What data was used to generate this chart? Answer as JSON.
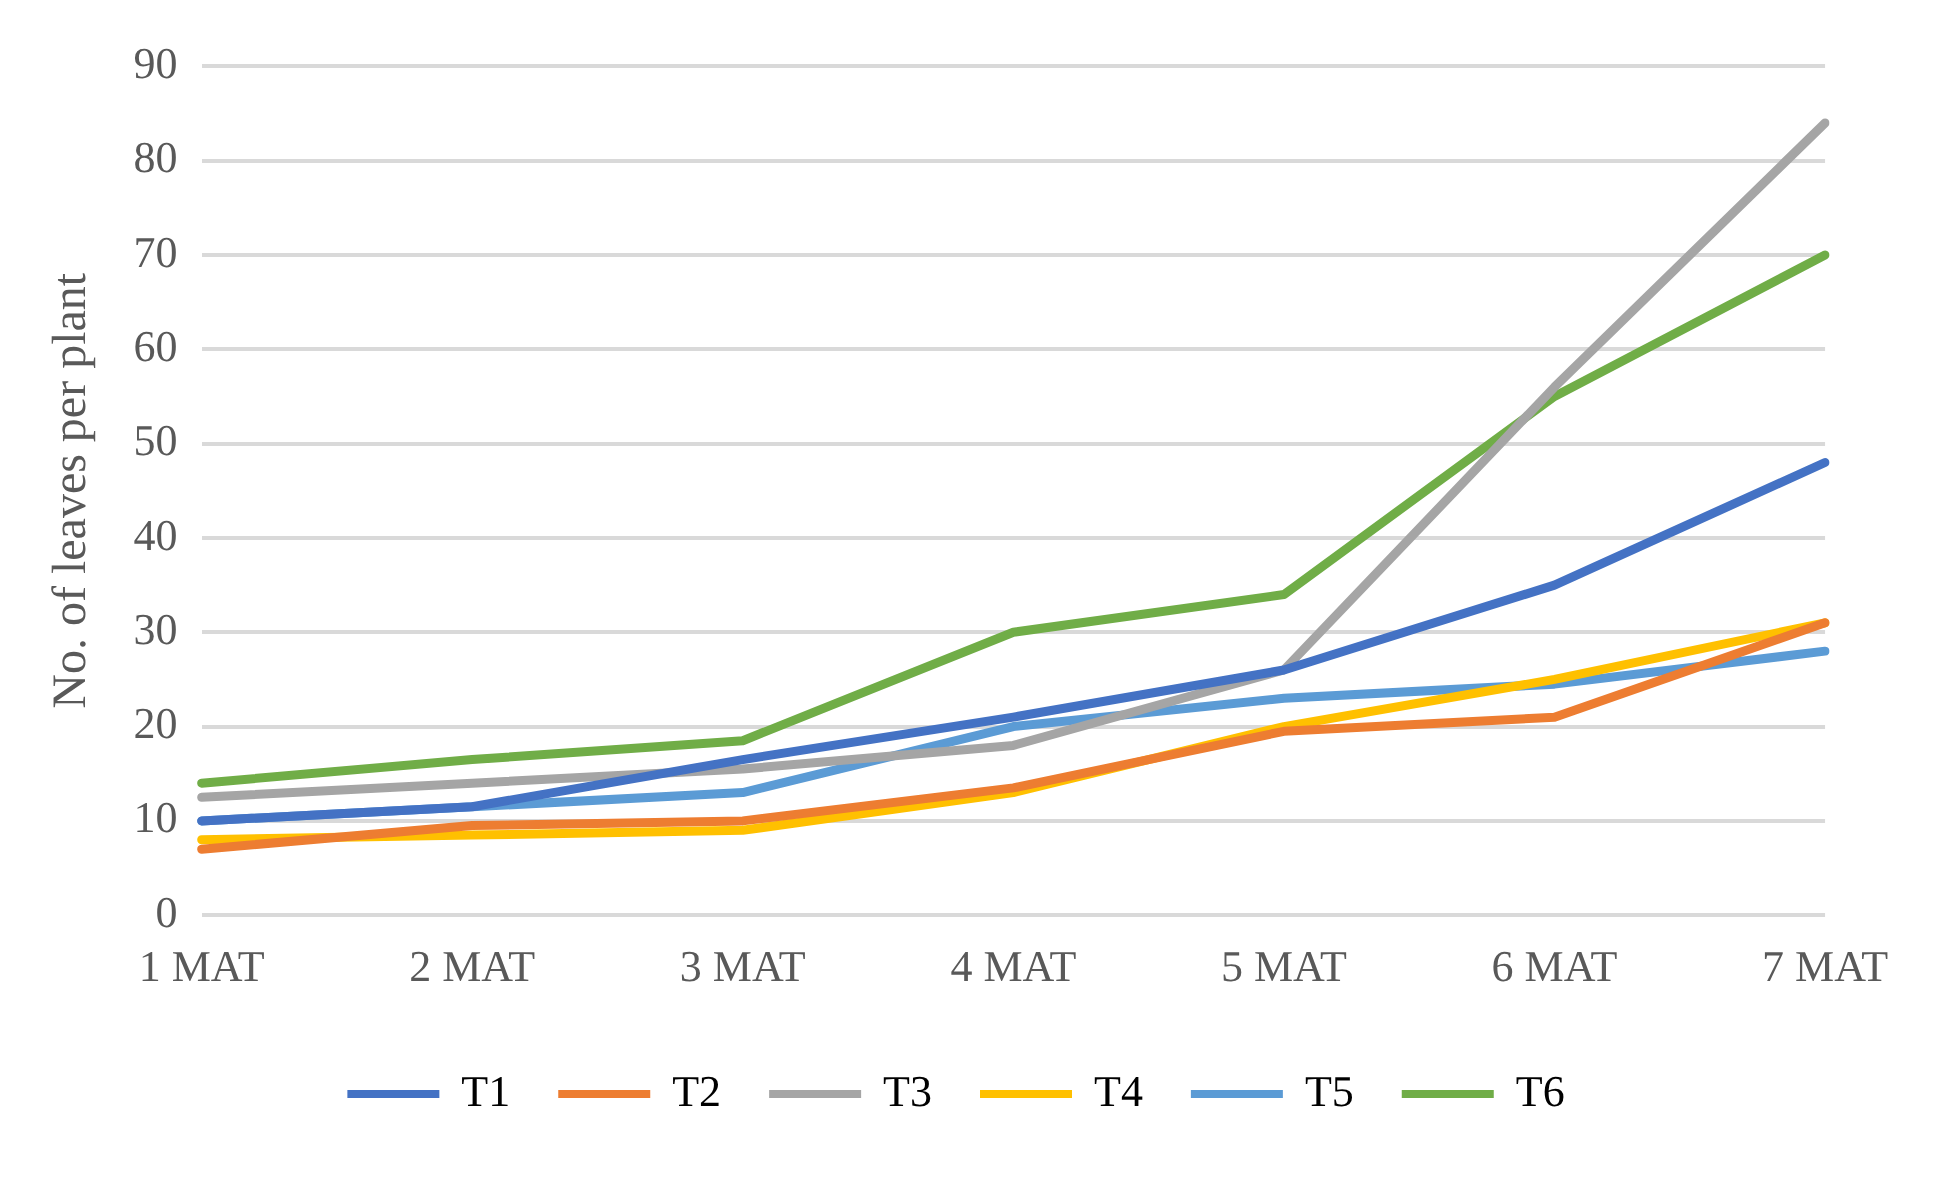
{
  "chart_data": {
    "type": "line",
    "ylabel": "No. of leaves per plant",
    "categories": [
      "1 MAT",
      "2 MAT",
      "3 MAT",
      "4 MAT",
      "5 MAT",
      "6 MAT",
      "7 MAT"
    ],
    "series": [
      {
        "name": "T1",
        "color": "#4472c4",
        "values": [
          10,
          11.5,
          16.5,
          21,
          26,
          35,
          48
        ]
      },
      {
        "name": "T2",
        "color": "#ed7d31",
        "values": [
          7,
          9.5,
          10,
          13.5,
          19.5,
          21,
          31
        ]
      },
      {
        "name": "T3",
        "color": "#a5a5a5",
        "values": [
          12.5,
          14,
          15.5,
          18,
          26,
          56,
          84
        ]
      },
      {
        "name": "T4",
        "color": "#ffc000",
        "values": [
          8,
          8.5,
          9,
          13,
          20,
          25,
          31
        ]
      },
      {
        "name": "T5",
        "color": "#5b9bd5",
        "values": [
          10,
          11.5,
          13,
          20,
          23,
          24.5,
          28
        ]
      },
      {
        "name": "T6",
        "color": "#70ad47",
        "values": [
          14,
          16.5,
          18.5,
          30,
          34,
          55,
          70
        ]
      }
    ],
    "ylim": [
      0,
      90
    ],
    "yticks": [
      0,
      10,
      20,
      30,
      40,
      50,
      60,
      70,
      80,
      90
    ],
    "grid": "y",
    "legend": "bottom",
    "marker": "none",
    "line_style": "solid"
  }
}
